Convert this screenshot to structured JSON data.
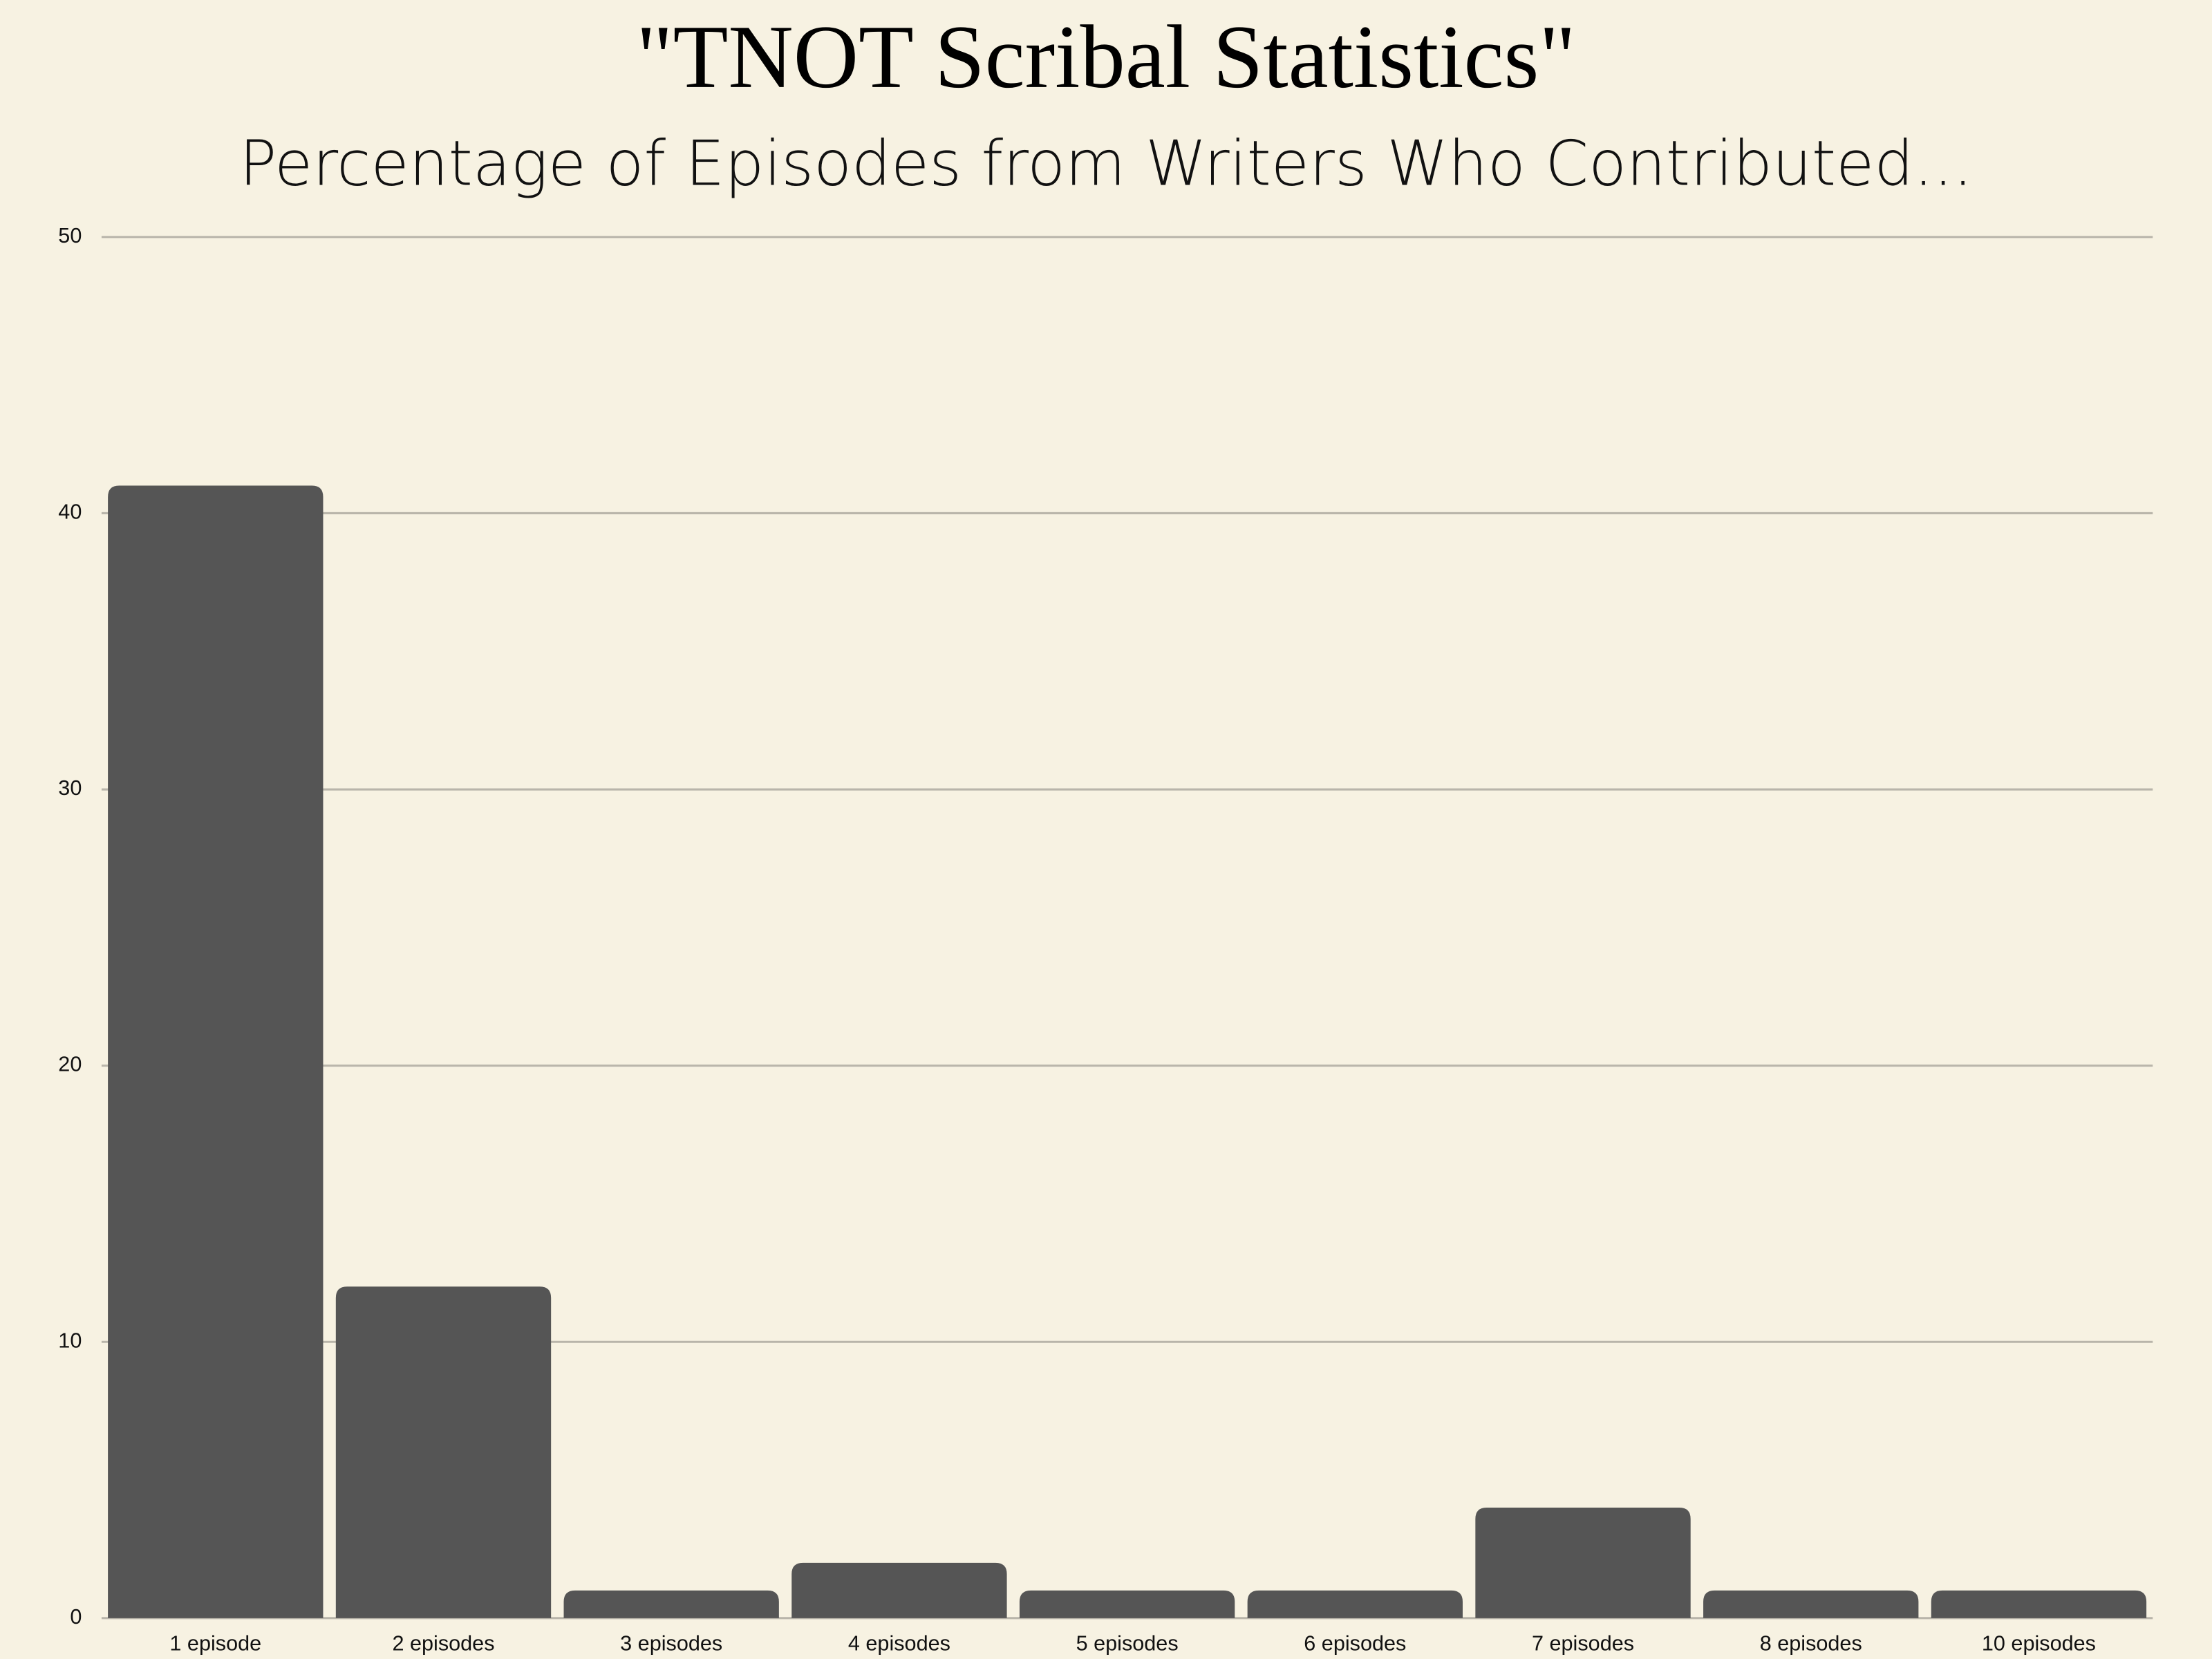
{
  "chart_data": {
    "type": "bar",
    "title": "\"TNOT Scribal Statistics\"",
    "subtitle": "Percentage of Episodes from Writers Who Contributed...",
    "categories": [
      "1 episode",
      "2 episodes",
      "3 episodes",
      "4 episodes",
      "5 episodes",
      "6 episodes",
      "7 episodes",
      "8 episodes",
      "10 episodes"
    ],
    "values": [
      41,
      12,
      1,
      2,
      1,
      1,
      4,
      1,
      1
    ],
    "color": "#555555",
    "ylim": [
      0,
      50
    ],
    "yticks": [
      0,
      10,
      20,
      30,
      40,
      50
    ],
    "grid": true
  }
}
